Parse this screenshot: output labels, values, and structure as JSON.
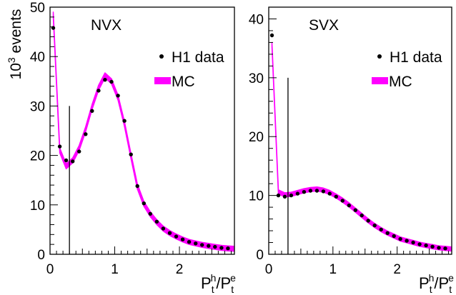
{
  "chart_data": [
    {
      "type": "line",
      "panel_label": "NVX",
      "xlabel": "",
      "ylabel": "10^3 events",
      "ylabel_parts": {
        "base": "10",
        "exp": "3",
        "rest": " events"
      },
      "xlim": [
        0,
        2.85
      ],
      "ylim": [
        0,
        50
      ],
      "x_ticks": [
        0,
        1,
        2
      ],
      "y_ticks": [
        0,
        10,
        20,
        30,
        40,
        50
      ],
      "cut_line": {
        "x": 0.3,
        "y_top": 30
      },
      "legend": {
        "placement": "right",
        "entries": [
          {
            "label": "H1 data",
            "marker": "dot"
          },
          {
            "label": "MC",
            "marker": "band"
          }
        ]
      },
      "series": [
        {
          "name": "H1 data",
          "kind": "points",
          "x": [
            0.05,
            0.15,
            0.25,
            0.35,
            0.45,
            0.55,
            0.65,
            0.75,
            0.85,
            0.95,
            1.05,
            1.15,
            1.25,
            1.35,
            1.45,
            1.55,
            1.65,
            1.75,
            1.85,
            1.95,
            2.05,
            2.15,
            2.25,
            2.35,
            2.45,
            2.55,
            2.65,
            2.75
          ],
          "y": [
            45.8,
            21.8,
            19.0,
            18.8,
            20.8,
            24.3,
            29.0,
            33.1,
            35.3,
            34.9,
            32.1,
            27.0,
            20.2,
            13.8,
            10.3,
            8.2,
            6.6,
            5.2,
            4.3,
            3.6,
            3.0,
            2.5,
            2.2,
            1.9,
            1.7,
            1.5,
            1.3,
            1.2
          ]
        },
        {
          "name": "MC",
          "kind": "band",
          "color": "#ff00ff",
          "x": [
            0.05,
            0.15,
            0.25,
            0.35,
            0.45,
            0.55,
            0.65,
            0.75,
            0.85,
            0.95,
            1.05,
            1.15,
            1.25,
            1.35,
            1.45,
            1.55,
            1.65,
            1.75,
            1.85,
            1.95,
            2.05,
            2.15,
            2.25,
            2.35,
            2.45,
            2.55,
            2.65,
            2.75,
            2.85
          ],
          "y": [
            48.5,
            21.0,
            17.8,
            19.0,
            21.5,
            25.3,
            29.8,
            33.7,
            36.2,
            35.0,
            31.7,
            26.4,
            19.9,
            13.7,
            10.2,
            8.1,
            6.5,
            5.2,
            4.3,
            3.6,
            3.0,
            2.5,
            2.2,
            1.9,
            1.7,
            1.5,
            1.3,
            1.2,
            1.1
          ],
          "band_halfwidth": 0.5
        }
      ]
    },
    {
      "type": "line",
      "panel_label": "SVX",
      "xlabel": "",
      "ylabel": "",
      "xlim": [
        0,
        2.85
      ],
      "ylim": [
        0,
        42
      ],
      "x_ticks": [
        0,
        1,
        2
      ],
      "y_ticks": [
        0,
        10,
        20,
        30,
        40
      ],
      "cut_line": {
        "x": 0.3,
        "y_top": 30
      },
      "legend": {
        "placement": "right",
        "entries": [
          {
            "label": "H1 data",
            "marker": "dot"
          },
          {
            "label": "MC",
            "marker": "band"
          }
        ]
      },
      "series": [
        {
          "name": "H1 data",
          "kind": "points",
          "x": [
            0.05,
            0.15,
            0.25,
            0.35,
            0.45,
            0.55,
            0.65,
            0.75,
            0.85,
            0.95,
            1.05,
            1.15,
            1.25,
            1.35,
            1.45,
            1.55,
            1.65,
            1.75,
            1.85,
            1.95,
            2.05,
            2.15,
            2.25,
            2.35,
            2.45,
            2.55,
            2.65,
            2.75
          ],
          "y": [
            37.2,
            10.0,
            9.8,
            10.0,
            10.3,
            10.6,
            10.8,
            10.8,
            10.7,
            10.3,
            9.8,
            9.1,
            8.3,
            7.5,
            6.6,
            5.7,
            4.9,
            4.2,
            3.6,
            3.1,
            2.6,
            2.3,
            2.0,
            1.7,
            1.5,
            1.3,
            1.1,
            1.0
          ]
        },
        {
          "name": "MC",
          "kind": "band",
          "color": "#ff00ff",
          "x": [
            0.05,
            0.15,
            0.25,
            0.35,
            0.45,
            0.55,
            0.65,
            0.75,
            0.85,
            0.95,
            1.05,
            1.15,
            1.25,
            1.35,
            1.45,
            1.55,
            1.65,
            1.75,
            1.85,
            1.95,
            2.05,
            2.15,
            2.25,
            2.35,
            2.45,
            2.55,
            2.65,
            2.75,
            2.85
          ],
          "y": [
            35.6,
            10.6,
            10.1,
            10.2,
            10.5,
            10.8,
            11.0,
            11.1,
            10.9,
            10.5,
            9.9,
            9.2,
            8.4,
            7.5,
            6.6,
            5.7,
            4.9,
            4.2,
            3.6,
            3.1,
            2.6,
            2.3,
            2.0,
            1.7,
            1.5,
            1.3,
            1.1,
            1.0,
            0.9
          ],
          "band_halfwidth": 0.35
        }
      ]
    }
  ],
  "x_title": {
    "base": "P",
    "sub1": "t",
    "sup1": "h",
    "slash": "/",
    "base2": "P",
    "sub2": "t",
    "sup2": "e"
  }
}
